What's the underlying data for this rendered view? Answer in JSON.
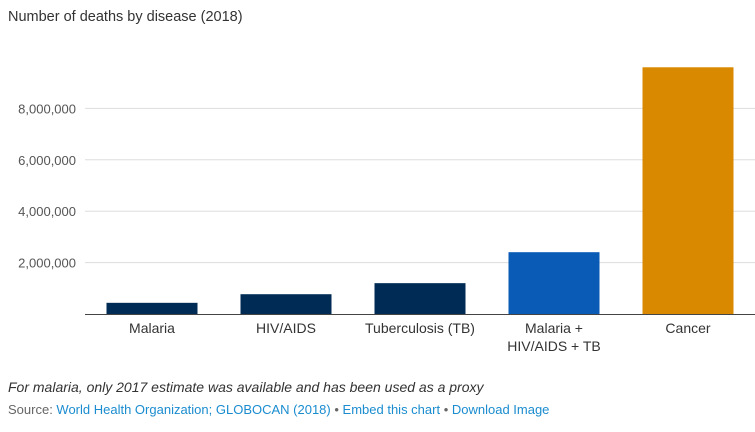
{
  "chart_data": {
    "type": "bar",
    "title": "Number of deaths by disease (2018)",
    "categories": [
      "Malaria",
      "HIV/AIDS",
      "Tuberculosis (TB)",
      "Malaria + HIV/AIDS + TB",
      "Cancer"
    ],
    "category_lines": [
      [
        "Malaria"
      ],
      [
        "HIV/AIDS"
      ],
      [
        "Tuberculosis (TB)"
      ],
      [
        "Malaria +",
        "HIV/AIDS + TB"
      ],
      [
        "Cancer"
      ]
    ],
    "values": [
      435000,
      770000,
      1200000,
      2405000,
      9600000
    ],
    "colors": [
      "#002b55",
      "#002b55",
      "#002b55",
      "#0a5bb5",
      "#d98900"
    ],
    "yticks": [
      2000000,
      4000000,
      6000000,
      8000000
    ],
    "ytick_labels": [
      "2,000,000",
      "4,000,000",
      "6,000,000",
      "8,000,000"
    ],
    "ylim": [
      0,
      10000000
    ],
    "xlabel": "",
    "ylabel": ""
  },
  "footer": {
    "note": "For malaria, only 2017 estimate was available and has been used as a proxy",
    "source_prefix": "Source: ",
    "source_link": "World Health Organization; GLOBOCAN (2018)",
    "separator": " • ",
    "embed_link": "Embed this chart",
    "download_link": "Download Image"
  }
}
